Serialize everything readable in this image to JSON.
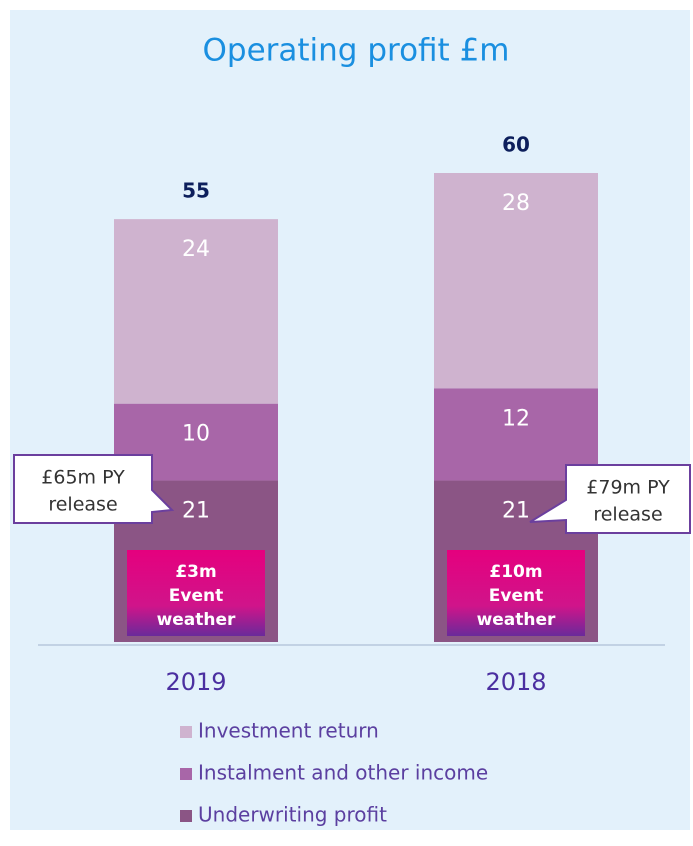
{
  "chart_data": {
    "type": "stacked_bar",
    "title": "Operating profit £m",
    "categories": [
      "2019",
      "2018"
    ],
    "series": [
      {
        "name": "Underwriting profit",
        "color": "#8b5585",
        "values": [
          21,
          21
        ]
      },
      {
        "name": "Instalment and other income",
        "color": "#a866a8",
        "values": [
          10,
          12
        ]
      },
      {
        "name": "Investment return",
        "color": "#cfb3cf",
        "values": [
          24,
          28
        ]
      }
    ],
    "totals": [
      55,
      60
    ],
    "callouts": [
      [
        "£65m PY",
        "release"
      ],
      [
        "£79m PY",
        "release"
      ]
    ],
    "event_boxes": [
      [
        "£3m",
        "Event",
        "weather"
      ],
      [
        "£10m",
        "Event",
        "weather"
      ]
    ]
  }
}
